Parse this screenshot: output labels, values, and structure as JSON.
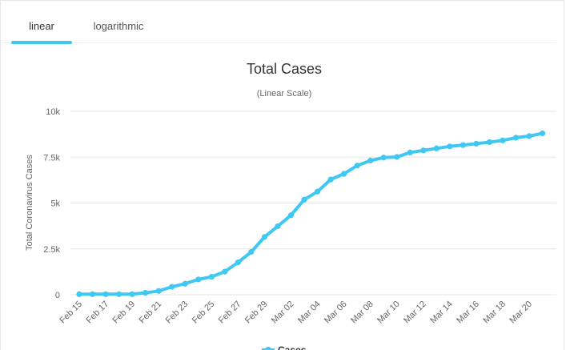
{
  "tabs": [
    {
      "label": "linear",
      "active": true
    },
    {
      "label": "logarithmic",
      "active": false
    }
  ],
  "colors": {
    "series": "#3fc8f2",
    "grid": "#e6e6e6",
    "tab_underline": "#3fc8f2"
  },
  "chart_data": {
    "type": "line",
    "title": "Total Cases",
    "subtitle": "(Linear Scale)",
    "xlabel": "",
    "ylabel": "Total Coronavirus Cases",
    "ylim": [
      0,
      10000
    ],
    "y_ticks": [
      0,
      2500,
      5000,
      7500,
      10000
    ],
    "y_tick_labels": [
      "0",
      "2.5k",
      "5k",
      "7.5k",
      "10k"
    ],
    "x_tick_labels": [
      "Feb 15",
      "Feb 17",
      "Feb 19",
      "Feb 21",
      "Feb 23",
      "Feb 25",
      "Feb 27",
      "Feb 29",
      "Mar 02",
      "Mar 04",
      "Mar 06",
      "Mar 08",
      "Mar 10",
      "Mar 12",
      "Mar 14",
      "Mar 16",
      "Mar 18",
      "Mar 20"
    ],
    "grid": true,
    "legend_position": "bottom",
    "series": [
      {
        "name": "Cases",
        "x": [
          "Feb 15",
          "Feb 16",
          "Feb 17",
          "Feb 18",
          "Feb 19",
          "Feb 20",
          "Feb 21",
          "Feb 22",
          "Feb 23",
          "Feb 24",
          "Feb 25",
          "Feb 26",
          "Feb 27",
          "Feb 28",
          "Feb 29",
          "Mar 01",
          "Mar 02",
          "Mar 03",
          "Mar 04",
          "Mar 05",
          "Mar 06",
          "Mar 07",
          "Mar 08",
          "Mar 09",
          "Mar 10",
          "Mar 11",
          "Mar 12",
          "Mar 13",
          "Mar 14",
          "Mar 15",
          "Mar 16",
          "Mar 17",
          "Mar 18",
          "Mar 19",
          "Mar 20",
          "Mar 21"
        ],
        "values": [
          28,
          29,
          30,
          31,
          31,
          104,
          204,
          433,
          602,
          833,
          977,
          1261,
          1766,
          2337,
          3150,
          3736,
          4335,
          5186,
          5621,
          6284,
          6593,
          7041,
          7314,
          7478,
          7513,
          7755,
          7869,
          7979,
          8086,
          8162,
          8236,
          8320,
          8413,
          8565,
          8652,
          8799
        ]
      }
    ]
  }
}
